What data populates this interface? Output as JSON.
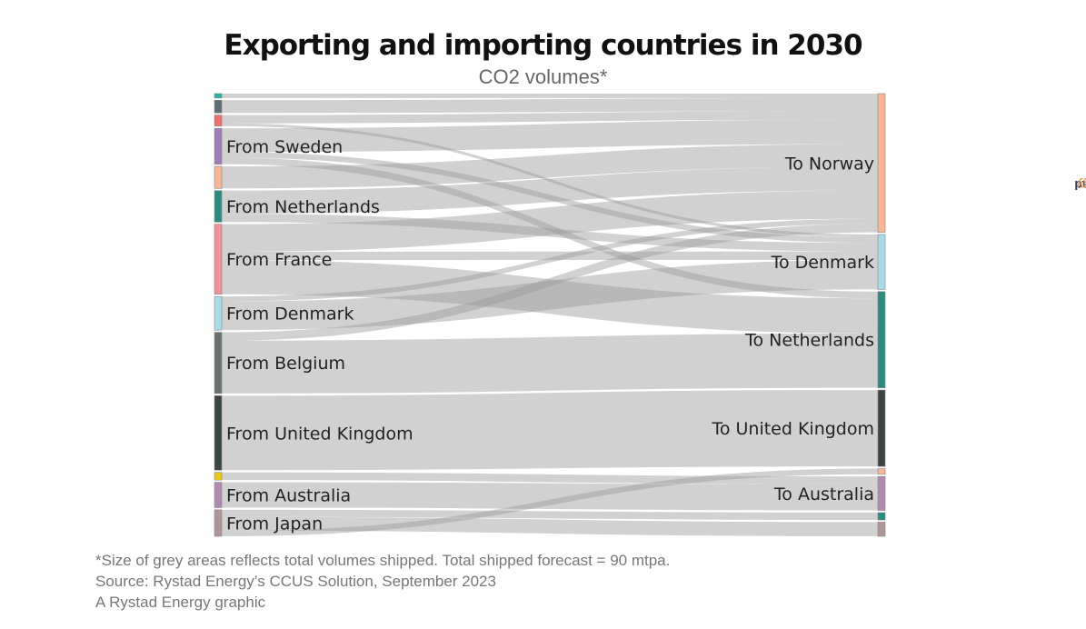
{
  "title": "Exporting and importing countries in 2030",
  "subtitle": "CO2 volumes*",
  "brand": {
    "part1": "Rystad",
    "part2": "Energy"
  },
  "footnotes": {
    "note": "*Size of grey areas reflects total volumes shipped. Total shipped forecast = 90 mtpa.",
    "source": "Source: Rystad Energy’s CCUS Solution, September 2023",
    "credit": "A Rystad Energy graphic"
  },
  "chart_data": {
    "type": "sankey",
    "title": "Exporting and importing countries in 2030",
    "subtitle": "CO2 volumes*",
    "total_shipped_mtpa": 90,
    "value_unit": "mtpa (estimated)",
    "sources": [
      {
        "id": "s_teal",
        "label": "",
        "color": "#26b3a6"
      },
      {
        "id": "s_slate",
        "label": "",
        "color": "#5e6f72"
      },
      {
        "id": "s_red",
        "label": "",
        "color": "#ef6f6c"
      },
      {
        "id": "s_sweden",
        "label": "From Sweden",
        "color": "#a07bb5"
      },
      {
        "id": "s_peach",
        "label": "",
        "color": "#f8b696"
      },
      {
        "id": "s_netherlands",
        "label": "From Netherlands",
        "color": "#2a8c80"
      },
      {
        "id": "s_france",
        "label": "From France",
        "color": "#f09295"
      },
      {
        "id": "s_denmark",
        "label": "From Denmark",
        "color": "#a9dbe8"
      },
      {
        "id": "s_belgium",
        "label": "From Belgium",
        "color": "#69716f"
      },
      {
        "id": "s_uk",
        "label": "From United Kingdom",
        "color": "#3b4545"
      },
      {
        "id": "s_yellow",
        "label": "",
        "color": "#e8c817"
      },
      {
        "id": "s_australia",
        "label": "From Australia",
        "color": "#b08ab0"
      },
      {
        "id": "s_japan",
        "label": "From Japan",
        "color": "#b09597"
      }
    ],
    "targets": [
      {
        "id": "t_norway",
        "label": "To Norway",
        "color": "#f8b696"
      },
      {
        "id": "t_denmark",
        "label": "To Denmark",
        "color": "#a9dbe8"
      },
      {
        "id": "t_netherlands",
        "label": "To Netherlands",
        "color": "#2a8c80"
      },
      {
        "id": "t_uk",
        "label": "To United Kingdom",
        "color": "#3b4545"
      },
      {
        "id": "t_peach2",
        "label": "",
        "color": "#f8b696"
      },
      {
        "id": "t_australia",
        "label": "To Australia",
        "color": "#b08ab0"
      },
      {
        "id": "t_teal2",
        "label": "",
        "color": "#2a8c80"
      },
      {
        "id": "t_japan",
        "label": "",
        "color": "#b09597"
      }
    ],
    "links": [
      {
        "source": "s_teal",
        "target": "t_norway",
        "value": 0.8
      },
      {
        "source": "s_slate",
        "target": "t_norway",
        "value": 2.3
      },
      {
        "source": "s_red",
        "target": "t_norway",
        "value": 1.5
      },
      {
        "source": "s_red",
        "target": "t_denmark",
        "value": 0.5
      },
      {
        "source": "s_sweden",
        "target": "t_norway",
        "value": 4.3
      },
      {
        "source": "s_sweden",
        "target": "t_denmark",
        "value": 1.0
      },
      {
        "source": "s_sweden",
        "target": "t_netherlands",
        "value": 1.2
      },
      {
        "source": "s_peach",
        "target": "t_norway",
        "value": 4.0
      },
      {
        "source": "s_netherlands",
        "target": "t_norway",
        "value": 4.2
      },
      {
        "source": "s_netherlands",
        "target": "t_denmark",
        "value": 1.5
      },
      {
        "source": "s_france",
        "target": "t_norway",
        "value": 5.0
      },
      {
        "source": "s_france",
        "target": "t_denmark",
        "value": 1.5
      },
      {
        "source": "s_france",
        "target": "t_netherlands",
        "value": 6.2
      },
      {
        "source": "s_denmark",
        "target": "t_norway",
        "value": 0.9
      },
      {
        "source": "s_denmark",
        "target": "t_denmark",
        "value": 5.2
      },
      {
        "source": "s_belgium",
        "target": "t_norway",
        "value": 0.8
      },
      {
        "source": "s_belgium",
        "target": "t_norway",
        "value": 0.7
      },
      {
        "source": "s_belgium",
        "target": "t_netherlands",
        "value": 9.6
      },
      {
        "source": "s_uk",
        "target": "t_uk",
        "value": 13.5
      },
      {
        "source": "s_yellow",
        "target": "t_australia",
        "value": 1.4
      },
      {
        "source": "s_australia",
        "target": "t_australia",
        "value": 4.6
      },
      {
        "source": "s_japan",
        "target": "t_teal2",
        "value": 1.3
      },
      {
        "source": "s_japan",
        "target": "t_japan",
        "value": 2.5
      },
      {
        "source": "s_japan",
        "target": "t_peach2",
        "value": 1.0
      }
    ]
  }
}
